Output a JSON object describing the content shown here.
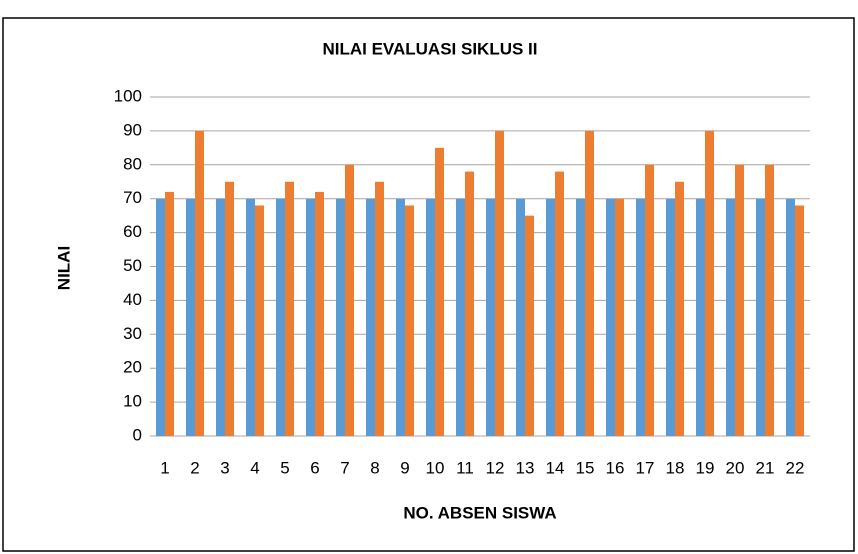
{
  "chart_data": {
    "type": "bar",
    "title": "NILAI EVALUASI SIKLUS II",
    "xlabel": "NO. ABSEN SISWA",
    "ylabel": "NILAI",
    "categories": [
      "1",
      "2",
      "3",
      "4",
      "5",
      "6",
      "7",
      "8",
      "9",
      "10",
      "11",
      "12",
      "13",
      "14",
      "15",
      "16",
      "17",
      "18",
      "19",
      "20",
      "21",
      "22"
    ],
    "series": [
      {
        "color": "#5b9bd5",
        "values": [
          70,
          70,
          70,
          70,
          70,
          70,
          70,
          70,
          70,
          70,
          70,
          70,
          70,
          70,
          70,
          70,
          70,
          70,
          70,
          70,
          70,
          70
        ]
      },
      {
        "color": "#ed7d31",
        "values": [
          72,
          90,
          75,
          68,
          75,
          72,
          80,
          75,
          68,
          85,
          78,
          90,
          65,
          78,
          90,
          70,
          80,
          75,
          90,
          80,
          80,
          68
        ]
      }
    ],
    "ylim": [
      0,
      100
    ],
    "yticks": [
      0,
      10,
      20,
      30,
      40,
      50,
      60,
      70,
      80,
      90,
      100
    ],
    "grid": true
  }
}
